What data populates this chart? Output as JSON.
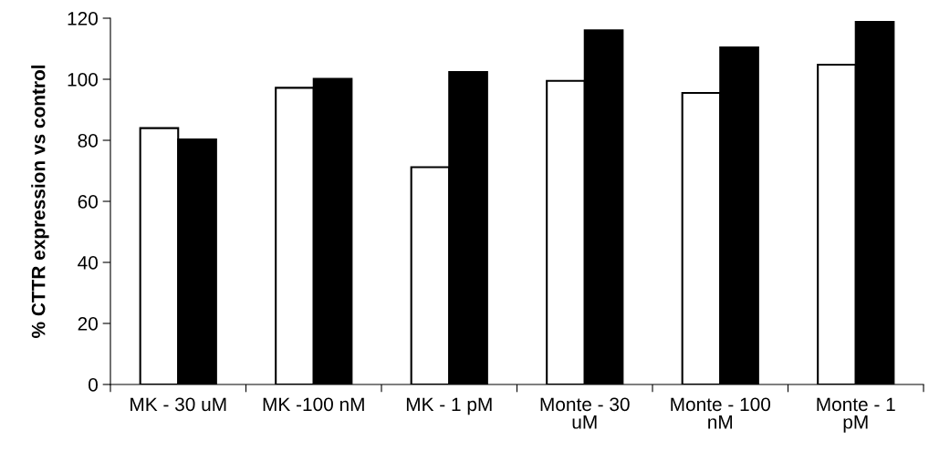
{
  "chart_data": {
    "type": "bar",
    "ylabel": "% CTTR expression vs control",
    "categories": [
      "MK - 30 uM",
      "MK -100 nM",
      "MK - 1 pM",
      "Monte - 30\nuM",
      "Monte - 100\nnM",
      "Monte - 1\npM"
    ],
    "series": [
      {
        "color": "#ffffff",
        "values": [
          84,
          97.2,
          71.2,
          99.5,
          95.5,
          104.8
        ]
      },
      {
        "color": "#000000",
        "values": [
          80.3,
          100.1,
          102.4,
          116,
          110.4,
          118.8
        ]
      }
    ],
    "ylim": [
      0,
      120
    ],
    "yticks": [
      0,
      20,
      40,
      60,
      80,
      100,
      120
    ],
    "grid": false,
    "legend": false
  }
}
